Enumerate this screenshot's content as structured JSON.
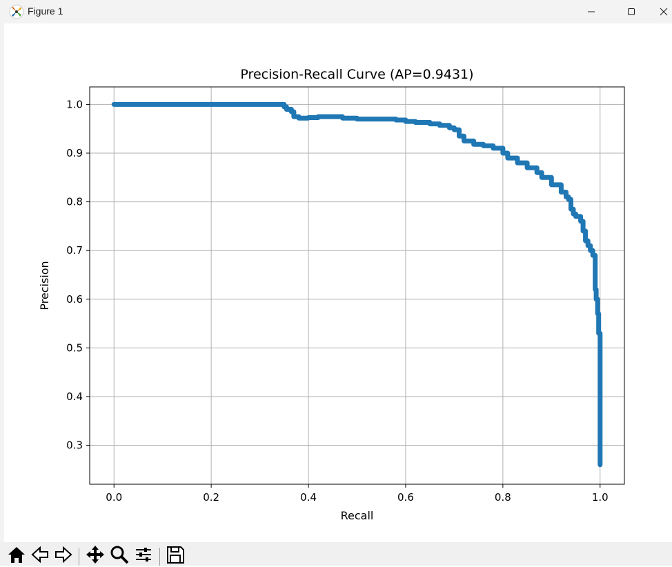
{
  "window": {
    "title": "Figure 1",
    "controls": [
      "minimize",
      "maximize",
      "close"
    ]
  },
  "toolbar": {
    "buttons": [
      {
        "name": "home",
        "icon": "home-icon"
      },
      {
        "name": "back",
        "icon": "arrow-left-icon"
      },
      {
        "name": "forward",
        "icon": "arrow-right-icon"
      },
      {
        "name": "pan",
        "icon": "move-icon"
      },
      {
        "name": "zoom",
        "icon": "zoom-icon"
      },
      {
        "name": "configure-subplots",
        "icon": "sliders-icon"
      },
      {
        "name": "save",
        "icon": "save-icon"
      }
    ]
  },
  "chart_data": {
    "type": "line",
    "title": "Precision-Recall Curve (AP=0.9431)",
    "xlabel": "Recall",
    "ylabel": "Precision",
    "xlim": [
      -0.05,
      1.05
    ],
    "ylim": [
      0.22,
      1.036
    ],
    "xticks": [
      0.0,
      0.2,
      0.4,
      0.6,
      0.8,
      1.0
    ],
    "xtick_labels": [
      "0.0",
      "0.2",
      "0.4",
      "0.6",
      "0.8",
      "1.0"
    ],
    "yticks": [
      0.3,
      0.4,
      0.5,
      0.6,
      0.7,
      0.8,
      0.9,
      1.0
    ],
    "ytick_labels": [
      "0.3",
      "0.4",
      "0.5",
      "0.6",
      "0.7",
      "0.8",
      "0.9",
      "1.0"
    ],
    "grid": true,
    "series_color": "#1f77b4",
    "series": [
      {
        "x": [
          0.0,
          0.05,
          0.1,
          0.15,
          0.2,
          0.25,
          0.3,
          0.345,
          0.35,
          0.355,
          0.36,
          0.365,
          0.37,
          0.38,
          0.4,
          0.42,
          0.45,
          0.47,
          0.5,
          0.52,
          0.55,
          0.58,
          0.6,
          0.62,
          0.65,
          0.67,
          0.69,
          0.7,
          0.71,
          0.72,
          0.74,
          0.76,
          0.78,
          0.8,
          0.81,
          0.83,
          0.85,
          0.87,
          0.88,
          0.9,
          0.92,
          0.93,
          0.935,
          0.94,
          0.945,
          0.95,
          0.96,
          0.965,
          0.97,
          0.975,
          0.98,
          0.985,
          0.99,
          0.992,
          0.995,
          0.997,
          1.0,
          1.0,
          1.0
        ],
        "y": [
          1.0,
          1.0,
          1.0,
          1.0,
          1.0,
          1.0,
          1.0,
          1.0,
          0.995,
          0.99,
          0.99,
          0.985,
          0.975,
          0.972,
          0.973,
          0.975,
          0.975,
          0.972,
          0.97,
          0.97,
          0.97,
          0.968,
          0.965,
          0.963,
          0.96,
          0.957,
          0.952,
          0.948,
          0.935,
          0.925,
          0.918,
          0.915,
          0.91,
          0.9,
          0.89,
          0.88,
          0.87,
          0.86,
          0.85,
          0.835,
          0.82,
          0.81,
          0.805,
          0.785,
          0.775,
          0.77,
          0.76,
          0.74,
          0.72,
          0.71,
          0.7,
          0.69,
          0.62,
          0.6,
          0.57,
          0.53,
          0.45,
          0.35,
          0.26
        ]
      }
    ]
  }
}
